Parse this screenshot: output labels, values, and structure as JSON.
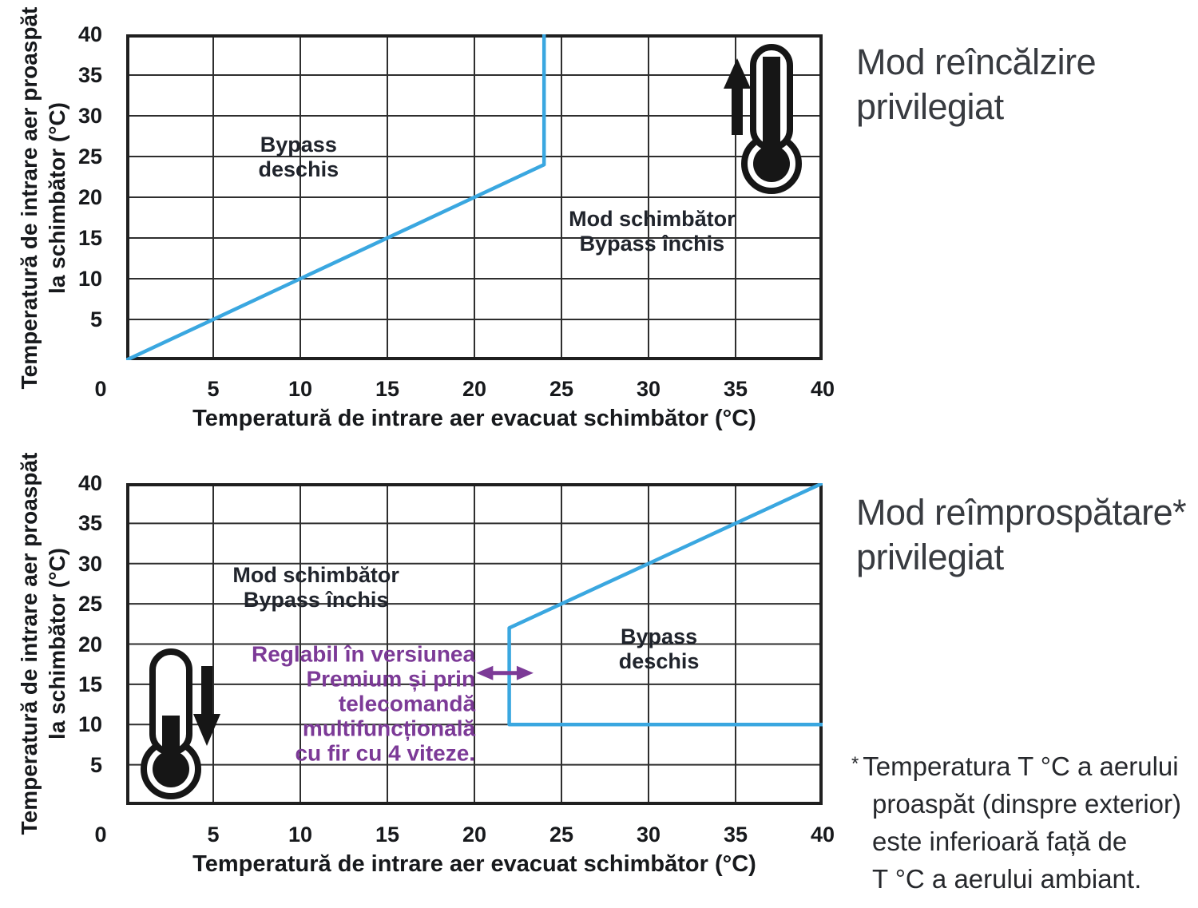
{
  "colors": {
    "line_blue": "#3aa7e0",
    "grid": "#2e2e2e",
    "border": "#1f1f1f",
    "purple": "#7c3a97",
    "ink": "#1d2026",
    "title_gray": "#383b40"
  },
  "side_titles": [
    {
      "lines": [
        "Mod reîncălzire",
        "privilegiat"
      ]
    },
    {
      "lines": [
        "Mod reîmprospătare*",
        "privilegiat"
      ]
    }
  ],
  "footnote": {
    "marker": "*",
    "lines": [
      "Temperatura T °C a aerului",
      "proaspăt (dinspre exterior)",
      "este inferioară față de",
      "T °C a aerului ambiant."
    ]
  },
  "chart_data": [
    {
      "type": "line",
      "name": "mod-reincalzire-privilegiat",
      "xlabel": "Temperatură de intrare aer evacuat schimbător (°C)",
      "ylabel_lines": [
        "Temperatură de intrare aer proaspăt",
        "la schimbător (°C)"
      ],
      "xlim": [
        0,
        40
      ],
      "ylim": [
        0,
        40
      ],
      "grid_step": 5,
      "grid": true,
      "xticks": [
        0,
        5,
        10,
        15,
        20,
        25,
        30,
        35,
        40
      ],
      "yticks": [
        5,
        10,
        15,
        20,
        25,
        30,
        35,
        40
      ],
      "series": [
        {
          "name": "bypass-boundary",
          "points": [
            [
              0,
              0
            ],
            [
              24,
              24
            ],
            [
              24,
              40
            ]
          ]
        }
      ],
      "annotations": [
        {
          "name": "bypass-open",
          "lines": [
            "Bypass",
            "deschis"
          ],
          "x": 9.9,
          "y": 24.9,
          "align": "center",
          "color": "ink"
        },
        {
          "name": "exchanger-mode",
          "lines": [
            "Mod schimbător",
            "Bypass închis"
          ],
          "x": 30.2,
          "y": 15.8,
          "align": "center",
          "color": "ink"
        }
      ],
      "icon": {
        "name": "thermometer-rising",
        "arrow": "up"
      }
    },
    {
      "type": "line",
      "name": "mod-reimprospatare-privilegiat",
      "xlabel": "Temperatură de intrare aer evacuat schimbător (°C)",
      "ylabel_lines": [
        "Temperatură de intrare aer proaspăt",
        "la schimbător (°C)"
      ],
      "xlim": [
        0,
        40
      ],
      "ylim": [
        0,
        40
      ],
      "grid_step": 5,
      "grid": true,
      "xticks": [
        0,
        5,
        10,
        15,
        20,
        25,
        30,
        35,
        40
      ],
      "yticks": [
        5,
        10,
        15,
        20,
        25,
        30,
        35,
        40
      ],
      "series": [
        {
          "name": "bypass-boundary",
          "points": [
            [
              40,
              10
            ],
            [
              22,
              10
            ],
            [
              22,
              22
            ],
            [
              40,
              40
            ]
          ]
        }
      ],
      "annotations": [
        {
          "name": "exchanger-mode",
          "lines": [
            "Mod schimbător",
            "Bypass închis"
          ],
          "x": 10.9,
          "y": 27.0,
          "align": "center",
          "color": "ink"
        },
        {
          "name": "bypass-open",
          "lines": [
            "Bypass",
            "deschis"
          ],
          "x": 30.6,
          "y": 19.4,
          "align": "center",
          "color": "ink"
        },
        {
          "name": "premium-note",
          "lines": [
            "Reglabil în versiunea",
            "Premium și prin",
            "telecomandă",
            "multifuncțională",
            "cu fir cu 4 viteze."
          ],
          "x": 20.05,
          "y": 12.6,
          "align": "right",
          "color": "purple"
        }
      ],
      "purple_arrow": {
        "x1": 20.2,
        "x2": 23.3,
        "y": 16.4
      },
      "icon": {
        "name": "thermometer-falling",
        "arrow": "down"
      }
    }
  ]
}
